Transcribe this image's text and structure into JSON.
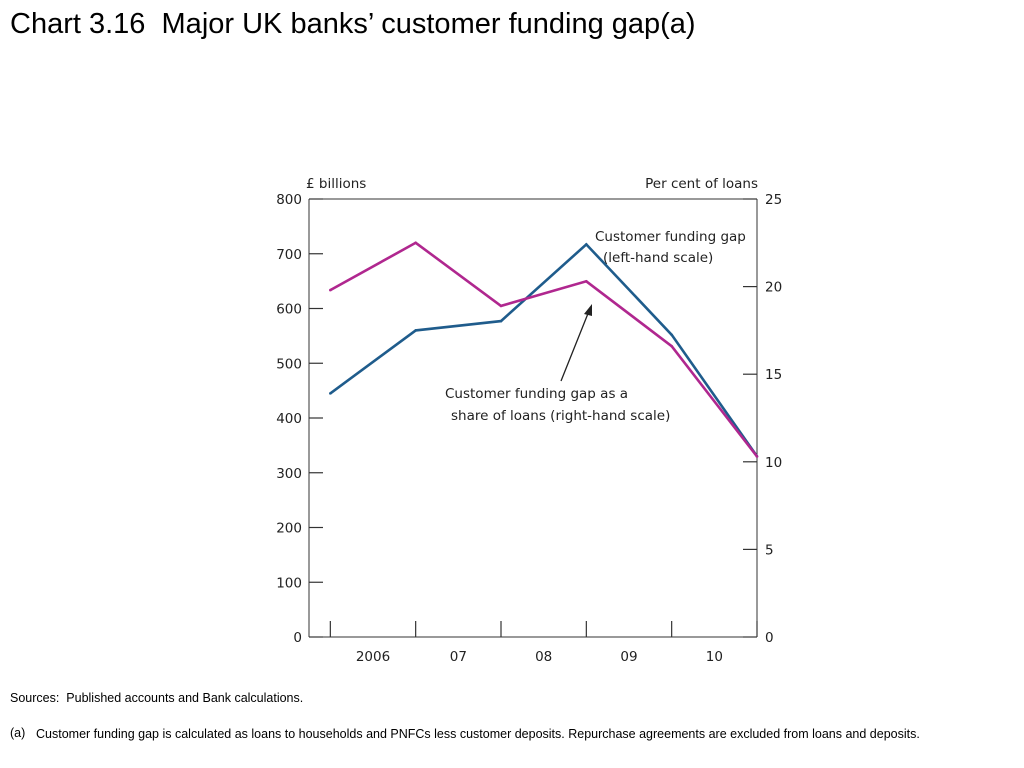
{
  "page": {
    "title": "Chart 3.16  Major UK banks’ customer funding gap(a)",
    "sources": "Sources:  Published accounts and Bank calculations.",
    "footnote_marker": "(a)",
    "footnote_text": "Customer funding gap is calculated as loans to households and PNFCs less customer deposits.  Repurchase agreements are excluded from loans and deposits."
  },
  "chart_data": {
    "type": "line",
    "x": [
      2006,
      2007,
      2008,
      2009,
      2010,
      2011
    ],
    "x_tick_labels": [
      "2006",
      "07",
      "08",
      "09",
      "10"
    ],
    "left_axis": {
      "label": "£ billions",
      "ylim": [
        0,
        800
      ],
      "ticks": [
        "0",
        "100",
        "200",
        "300",
        "400",
        "500",
        "600",
        "700",
        "800"
      ]
    },
    "right_axis": {
      "label": "Per cent of loans",
      "ylim": [
        0,
        25
      ],
      "ticks": [
        "0",
        "5",
        "10",
        "15",
        "20",
        "25"
      ]
    },
    "series": [
      {
        "key": "gap",
        "axis": "left",
        "color": "#1f5c8c",
        "values": [
          445,
          560,
          577,
          717,
          552,
          330
        ]
      },
      {
        "key": "share",
        "axis": "right",
        "color": "#b0278f",
        "values": [
          19.8,
          22.5,
          18.9,
          20.3,
          16.6,
          10.3
        ]
      }
    ],
    "annotations": {
      "gap_line1": "Customer funding gap",
      "gap_line2": "(left-hand scale)",
      "share_line1": "Customer funding gap as a",
      "share_line2": "share of loans (right-hand scale)"
    },
    "grid": false,
    "legend": "none"
  }
}
